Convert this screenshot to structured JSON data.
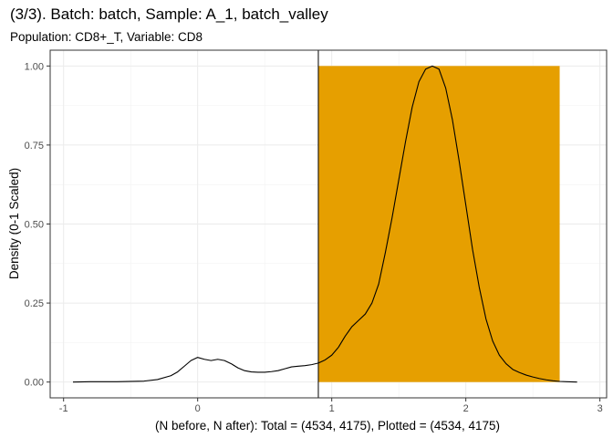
{
  "chart_data": {
    "type": "line",
    "title": "(3/3). Batch: batch, Sample: A_1, batch_valley",
    "subtitle": "Population: CD8+_T, Variable: CD8",
    "xlabel": "(N before, N after): Total = (4534, 4175), Plotted = (4534, 4175)",
    "ylabel": "Density (0-1 Scaled)",
    "xlim": [
      -1.1,
      3.05
    ],
    "ylim": [
      -0.05,
      1.05
    ],
    "x_ticks": [
      -1,
      0,
      1,
      2,
      3
    ],
    "x_tick_labels": [
      "-1",
      "0",
      "1",
      "2",
      "3"
    ],
    "y_ticks": [
      0,
      0.25,
      0.5,
      0.75,
      1
    ],
    "y_tick_labels": [
      "0.00",
      "0.25",
      "0.50",
      "0.75",
      "1.00"
    ],
    "grid": true,
    "gate": {
      "xmin": 0.9,
      "xmax": 2.7,
      "ymin": 0,
      "ymax": 1,
      "color": "#E69F00"
    },
    "threshold_line": {
      "x": 0.9,
      "color": "#000000"
    },
    "series": [
      {
        "color": "#000000",
        "x": [
          -0.93,
          -0.8,
          -0.6,
          -0.4,
          -0.3,
          -0.2,
          -0.15,
          -0.1,
          -0.05,
          0,
          0.05,
          0.1,
          0.15,
          0.2,
          0.25,
          0.3,
          0.35,
          0.4,
          0.45,
          0.5,
          0.55,
          0.6,
          0.65,
          0.7,
          0.75,
          0.8,
          0.85,
          0.9,
          0.95,
          1.0,
          1.05,
          1.1,
          1.15,
          1.2,
          1.25,
          1.3,
          1.35,
          1.4,
          1.45,
          1.5,
          1.55,
          1.6,
          1.65,
          1.7,
          1.75,
          1.8,
          1.85,
          1.9,
          1.95,
          2.0,
          2.05,
          2.1,
          2.15,
          2.2,
          2.25,
          2.3,
          2.35,
          2.4,
          2.45,
          2.5,
          2.55,
          2.6,
          2.65,
          2.7,
          2.75,
          2.83
        ],
        "y": [
          0.0,
          0.001,
          0.001,
          0.003,
          0.008,
          0.02,
          0.032,
          0.05,
          0.068,
          0.078,
          0.072,
          0.068,
          0.072,
          0.068,
          0.058,
          0.045,
          0.036,
          0.032,
          0.031,
          0.031,
          0.033,
          0.036,
          0.042,
          0.048,
          0.05,
          0.052,
          0.055,
          0.06,
          0.07,
          0.085,
          0.11,
          0.145,
          0.175,
          0.195,
          0.215,
          0.25,
          0.31,
          0.41,
          0.52,
          0.64,
          0.76,
          0.87,
          0.95,
          0.99,
          1.0,
          0.99,
          0.93,
          0.83,
          0.7,
          0.56,
          0.42,
          0.3,
          0.2,
          0.13,
          0.085,
          0.058,
          0.04,
          0.03,
          0.022,
          0.016,
          0.011,
          0.007,
          0.004,
          0.002,
          0.001,
          0.0
        ]
      }
    ]
  }
}
